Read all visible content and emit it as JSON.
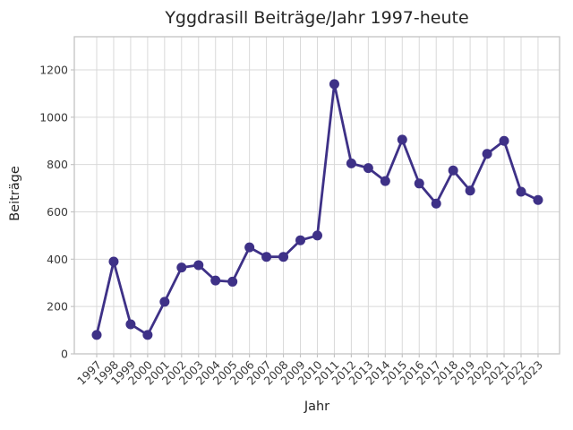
{
  "chart_data": {
    "type": "line",
    "title": "Yggdrasill Beiträge/Jahr 1997-heute",
    "xlabel": "Jahr",
    "ylabel": "Beiträge",
    "x": [
      "1997",
      "1998",
      "1999",
      "2000",
      "2001",
      "2002",
      "2003",
      "2004",
      "2005",
      "2006",
      "2007",
      "2008",
      "2009",
      "2010",
      "2011",
      "2012",
      "2013",
      "2014",
      "2015",
      "2016",
      "2017",
      "2018",
      "2019",
      "2020",
      "2021",
      "2022",
      "2023"
    ],
    "values": [
      80,
      390,
      125,
      80,
      220,
      365,
      375,
      310,
      305,
      450,
      410,
      410,
      480,
      500,
      1140,
      805,
      785,
      730,
      905,
      720,
      635,
      775,
      690,
      845,
      900,
      685,
      650
    ],
    "yticks": [
      0,
      200,
      400,
      600,
      800,
      1000,
      1200
    ],
    "ylim": [
      0,
      1340
    ],
    "grid": true,
    "legend": "none",
    "marker": "circle",
    "line_color": "#3e3187",
    "grid_color": "#d9d9d9",
    "frame_color": "#c4c4c4",
    "tick_color": "#c4c4c4",
    "tick_label_color": "#3a3a3a",
    "text_color": "#262626"
  }
}
